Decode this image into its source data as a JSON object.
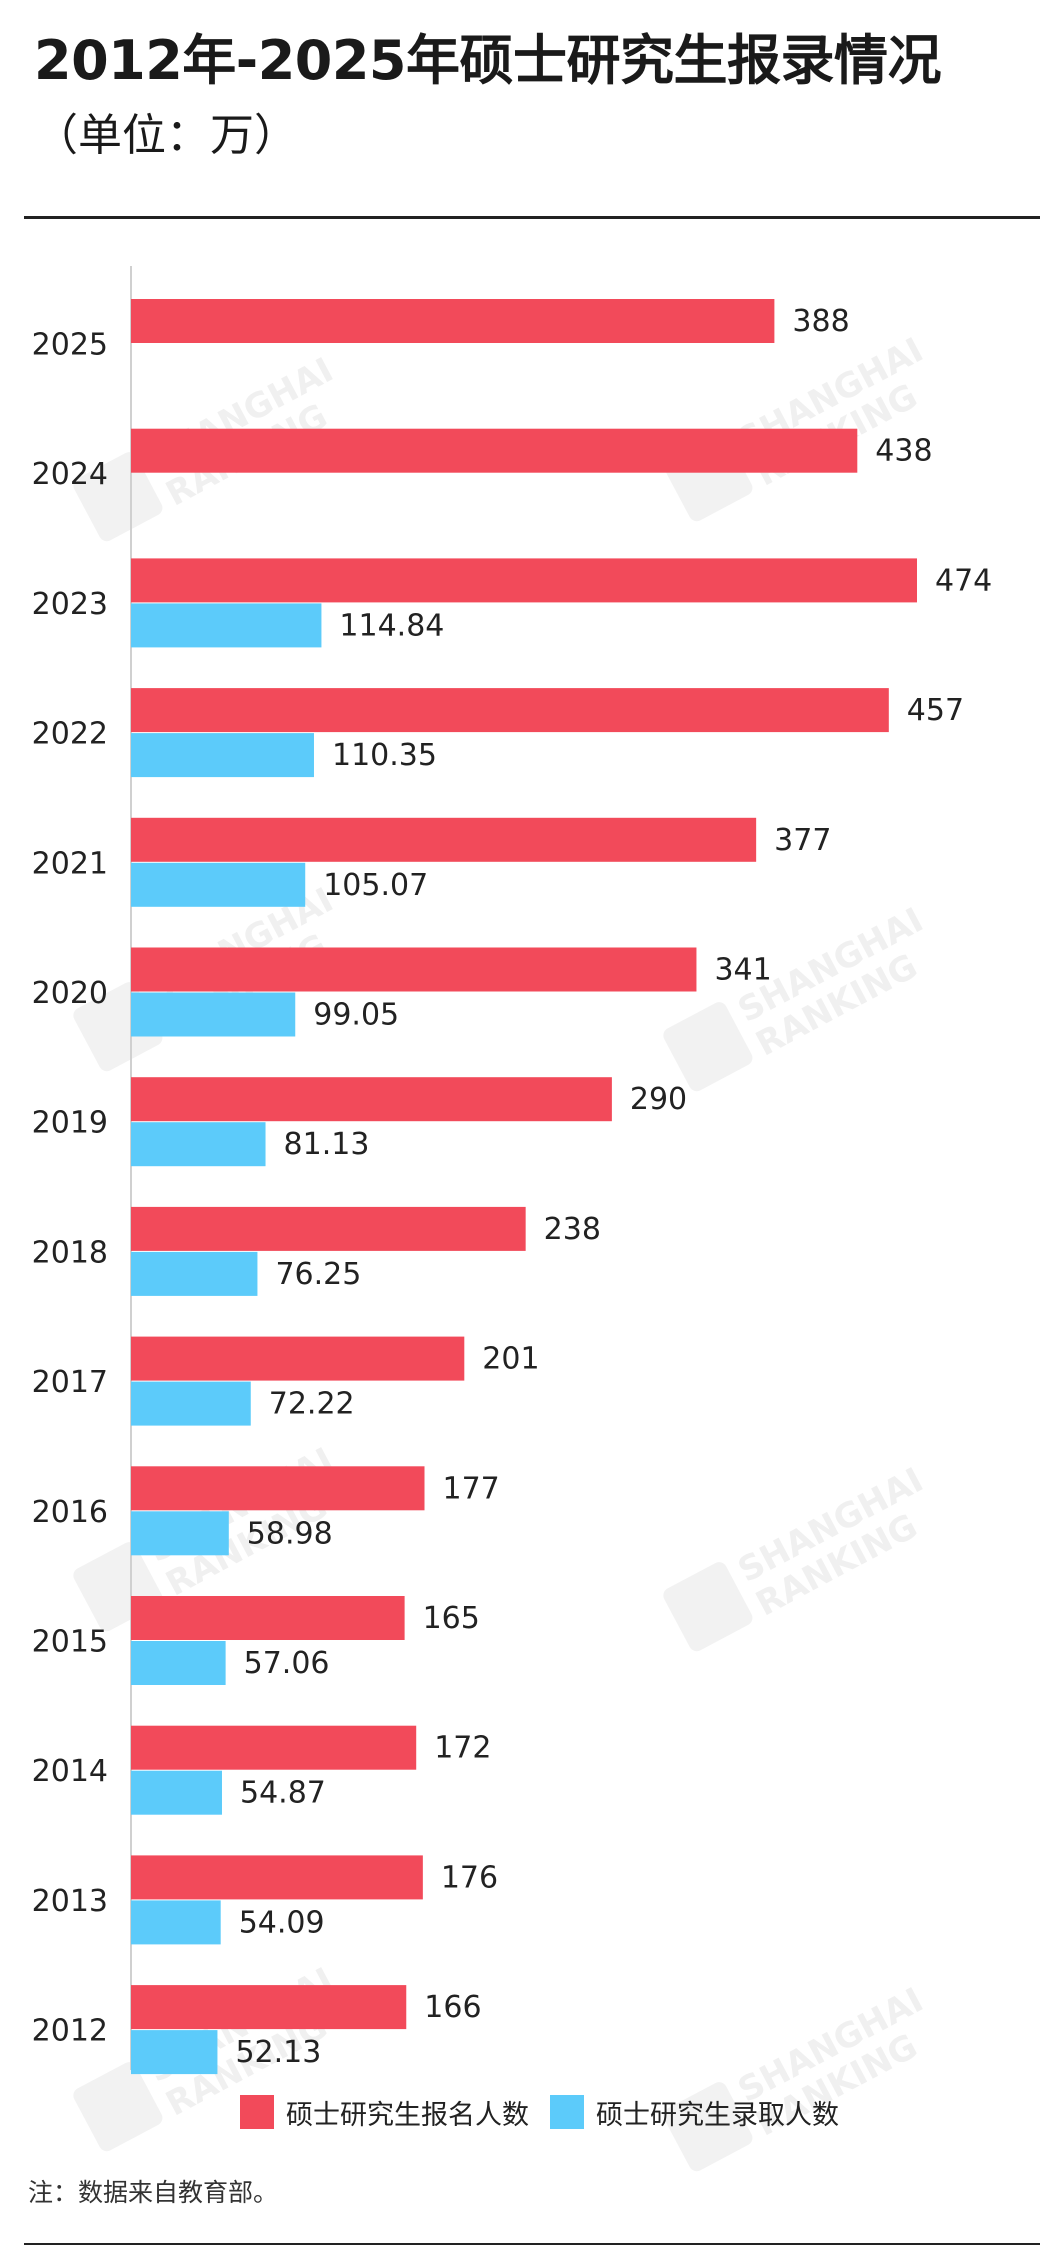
{
  "header": {
    "title": "2012年-2025年硕士研究生报录情况",
    "subtitle": "（单位：万）"
  },
  "footnote": "注：数据来自教育部。",
  "watermark": {
    "line1": "SHANGHAI",
    "line2": "RANKING"
  },
  "chart_data": {
    "type": "bar",
    "orientation": "horizontal",
    "title": "",
    "xlabel": "",
    "ylabel": "",
    "categories": [
      "2025",
      "2024",
      "2023",
      "2022",
      "2021",
      "2020",
      "2019",
      "2018",
      "2017",
      "2016",
      "2015",
      "2014",
      "2013",
      "2012"
    ],
    "series": [
      {
        "name": "硕士研究生报名人数",
        "color": "#f24a5a",
        "values": [
          388,
          438,
          474,
          457,
          377,
          341,
          290,
          238,
          201,
          177,
          165,
          172,
          176,
          166
        ],
        "labels": [
          "388",
          "438",
          "474",
          "457",
          "377",
          "341",
          "290",
          "238",
          "201",
          "177",
          "165",
          "172",
          "176",
          "166"
        ]
      },
      {
        "name": "硕士研究生录取人数",
        "color": "#5ccbfa",
        "values": [
          null,
          null,
          114.84,
          110.35,
          105.07,
          99.05,
          81.13,
          76.25,
          72.22,
          58.98,
          57.06,
          54.87,
          54.09,
          52.13
        ],
        "labels": [
          "",
          "",
          "114.84",
          "110.35",
          "105.07",
          "99.05",
          "81.13",
          "76.25",
          "72.22",
          "58.98",
          "57.06",
          "54.87",
          "54.09",
          "52.13"
        ]
      }
    ],
    "xlim": [
      0,
      500
    ],
    "grid": false,
    "legend_position": "bottom"
  }
}
